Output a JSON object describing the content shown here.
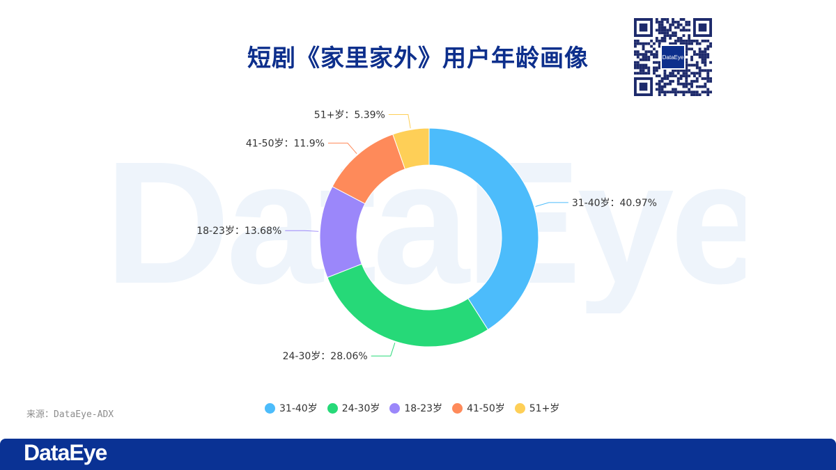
{
  "header": {
    "title": "短剧《家里家外》用户年龄画像"
  },
  "watermark": {
    "text": "DataEye"
  },
  "qr": {
    "logo_text": "DataEye"
  },
  "source": {
    "text": "来源：DataEye-ADX"
  },
  "footer": {
    "brand": "DataEye"
  },
  "colors": {
    "title": "#0d2f8c",
    "footer": "#0a3294",
    "series": [
      "#4cbcfb",
      "#26d978",
      "#9b87fa",
      "#fe8a5a",
      "#fecf57"
    ]
  },
  "chart_data": {
    "type": "pie",
    "variant": "donut",
    "title": "",
    "categories": [
      "31-40岁",
      "24-30岁",
      "18-23岁",
      "41-50岁",
      "51+岁"
    ],
    "values": [
      40.97,
      28.06,
      13.68,
      11.9,
      5.39
    ],
    "data_labels": [
      "31-40岁：40.97%",
      "24-30岁：28.06%",
      "18-23岁：13.68%",
      "41-50岁：11.9%",
      "51+岁：5.39%"
    ],
    "legend_position": "bottom"
  }
}
